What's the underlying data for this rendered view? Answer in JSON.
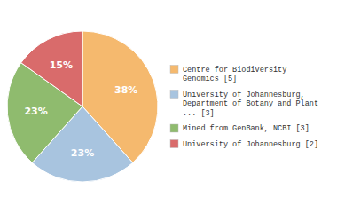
{
  "chart_data": {
    "type": "pie",
    "categories": [
      "Centre for Biodiversity\nGenomics [5]",
      "University of Johannesburg,\nDepartment of Botany and Plant\n... [3]",
      "Mined from GenBank, NCBI [3]",
      "University of Johannesburg [2]"
    ],
    "values": [
      38,
      23,
      23,
      15
    ],
    "value_labels": [
      "38%",
      "23%",
      "23%",
      "15%"
    ],
    "data_labels": true,
    "colors": [
      "#f5b96e",
      "#a8c4df",
      "#8fbb6e",
      "#d96b6b"
    ],
    "legend": "right"
  }
}
